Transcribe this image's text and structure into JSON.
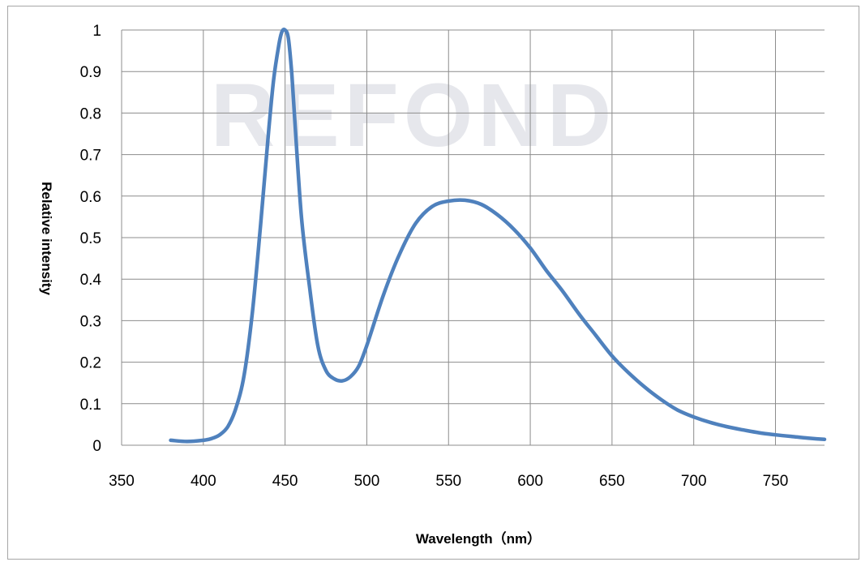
{
  "chart_data": {
    "type": "line",
    "title": "",
    "xlabel": "Wavelength（nm）",
    "ylabel": "Relative intensity",
    "xlim": [
      350,
      780
    ],
    "ylim": [
      0,
      1
    ],
    "x_ticks": [
      "350",
      "400",
      "450",
      "500",
      "550",
      "600",
      "650",
      "700",
      "750"
    ],
    "y_ticks": [
      "0",
      "0.1",
      "0.2",
      "0.3",
      "0.4",
      "0.5",
      "0.6",
      "0.7",
      "0.8",
      "0.9",
      "1"
    ],
    "grid": true,
    "legend": "none",
    "watermark": "REFOND",
    "series_color": "#4f81bd",
    "series": [
      {
        "x": [
          380,
          390,
          400,
          405,
          410,
          415,
          420,
          425,
          430,
          435,
          440,
          443,
          446,
          448,
          450,
          452,
          454,
          456,
          460,
          465,
          470,
          475,
          480,
          485,
          490,
          495,
          500,
          510,
          520,
          530,
          540,
          550,
          560,
          570,
          580,
          590,
          600,
          610,
          620,
          630,
          640,
          650,
          660,
          670,
          680,
          690,
          700,
          710,
          720,
          730,
          740,
          750,
          760,
          770,
          780
        ],
        "y": [
          0.012,
          0.009,
          0.012,
          0.016,
          0.025,
          0.045,
          0.09,
          0.17,
          0.32,
          0.53,
          0.76,
          0.88,
          0.96,
          0.995,
          1.0,
          0.98,
          0.9,
          0.78,
          0.55,
          0.38,
          0.24,
          0.18,
          0.16,
          0.155,
          0.165,
          0.19,
          0.24,
          0.36,
          0.46,
          0.535,
          0.575,
          0.588,
          0.59,
          0.58,
          0.555,
          0.52,
          0.475,
          0.42,
          0.37,
          0.315,
          0.265,
          0.215,
          0.175,
          0.14,
          0.11,
          0.085,
          0.068,
          0.055,
          0.045,
          0.037,
          0.03,
          0.025,
          0.021,
          0.017,
          0.014
        ]
      }
    ]
  }
}
